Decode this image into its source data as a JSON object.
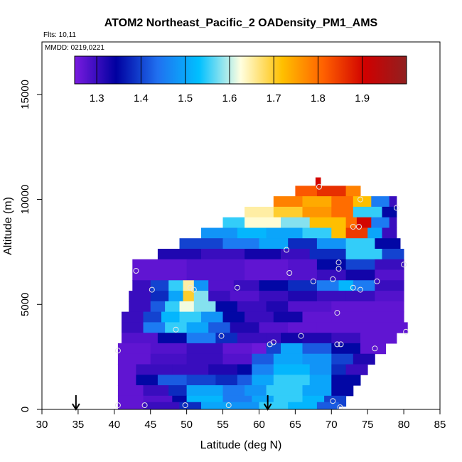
{
  "chart_data": {
    "type": "heatmap",
    "title": "ATOM2 Northeast_Pacific_2 OADensity_PM1_AMS",
    "flights_label": "Flts: 10,11",
    "mmdd_label": "MMDD: 0219,0221",
    "xlabel": "Latitude (deg N)",
    "ylabel": "Altitude (m)",
    "xlim": [
      30,
      85
    ],
    "ylim": [
      0,
      17500
    ],
    "x_ticks": [
      "30",
      "35",
      "40",
      "45",
      "50",
      "55",
      "60",
      "65",
      "70",
      "75",
      "80",
      "85"
    ],
    "y_ticks": [
      "0",
      "5000",
      "10000",
      "15000"
    ],
    "colorbar": {
      "range": [
        1.25,
        2.0
      ],
      "ticks": [
        "1.3",
        "1.4",
        "1.5",
        "1.6",
        "1.7",
        "1.8",
        "1.9"
      ],
      "colors": [
        "#7a1be0",
        "#0000a0",
        "#2070f0",
        "#00c0ff",
        "#ffffe0",
        "#ffc000",
        "#ff6000",
        "#d00000",
        "#902020"
      ]
    },
    "arrows_latitude": [
      34.7,
      61.2
    ],
    "rows": [
      {
        "alt": 10800,
        "segs": [
          [
            67.8,
            68.5,
            1.9
          ]
        ]
      },
      {
        "alt": 10400,
        "segs": [
          [
            65.0,
            68.0,
            1.82
          ],
          [
            68.0,
            72.0,
            1.86
          ],
          [
            72.0,
            74.0,
            1.78
          ]
        ]
      },
      {
        "alt": 9900,
        "segs": [
          [
            62.0,
            66.0,
            1.78
          ],
          [
            66.0,
            70.0,
            1.74
          ],
          [
            70.0,
            73.0,
            1.8
          ],
          [
            73.0,
            75.5,
            1.72
          ],
          [
            75.5,
            78.0,
            1.45
          ],
          [
            78.0,
            79.0,
            1.3
          ]
        ]
      },
      {
        "alt": 9400,
        "segs": [
          [
            58.0,
            62.0,
            1.65
          ],
          [
            62.0,
            66.0,
            1.7
          ],
          [
            66.0,
            70.0,
            1.76
          ],
          [
            70.0,
            73.0,
            1.8
          ],
          [
            73.0,
            77.0,
            1.55
          ],
          [
            77.0,
            79.0,
            1.35
          ]
        ]
      },
      {
        "alt": 8900,
        "segs": [
          [
            55.0,
            58.0,
            1.55
          ],
          [
            58.0,
            63.0,
            1.63
          ],
          [
            63.0,
            67.0,
            1.58
          ],
          [
            67.0,
            72.0,
            1.72
          ],
          [
            72.0,
            73.5,
            1.8
          ],
          [
            73.5,
            75.5,
            1.9
          ],
          [
            75.5,
            78.0,
            1.45
          ],
          [
            78.0,
            79.0,
            1.3
          ]
        ]
      },
      {
        "alt": 8400,
        "segs": [
          [
            52.0,
            57.0,
            1.48
          ],
          [
            57.0,
            61.0,
            1.52
          ],
          [
            61.0,
            66.0,
            1.5
          ],
          [
            66.0,
            70.0,
            1.55
          ],
          [
            70.0,
            72.0,
            1.72
          ],
          [
            72.0,
            75.0,
            1.85
          ],
          [
            75.0,
            77.0,
            1.5
          ],
          [
            77.0,
            79.0,
            1.3
          ]
        ]
      },
      {
        "alt": 7900,
        "segs": [
          [
            49.0,
            55.0,
            1.4
          ],
          [
            55.0,
            60.0,
            1.45
          ],
          [
            60.0,
            64.0,
            1.5
          ],
          [
            64.0,
            68.0,
            1.38
          ],
          [
            68.0,
            72.0,
            1.48
          ],
          [
            72.0,
            76.0,
            1.55
          ],
          [
            76.0,
            79.5,
            1.35
          ]
        ]
      },
      {
        "alt": 7400,
        "segs": [
          [
            46.0,
            52.0,
            1.32
          ],
          [
            52.0,
            58.0,
            1.3
          ],
          [
            58.0,
            63.0,
            1.33
          ],
          [
            63.0,
            67.0,
            1.3
          ],
          [
            67.0,
            72.0,
            1.38
          ],
          [
            72.0,
            77.0,
            1.55
          ],
          [
            77.0,
            80.0,
            1.4
          ]
        ]
      },
      {
        "alt": 6900,
        "segs": [
          [
            42.5,
            50.0,
            1.27
          ],
          [
            50.0,
            58.0,
            1.28
          ],
          [
            58.0,
            64.0,
            1.27
          ],
          [
            64.0,
            68.0,
            1.28
          ],
          [
            68.0,
            72.0,
            1.35
          ],
          [
            72.0,
            76.0,
            1.4
          ],
          [
            76.0,
            80.0,
            1.3
          ]
        ]
      },
      {
        "alt": 6400,
        "segs": [
          [
            42.5,
            50.0,
            1.27
          ],
          [
            50.0,
            58.0,
            1.28
          ],
          [
            58.0,
            64.0,
            1.27
          ],
          [
            64.0,
            68.0,
            1.28
          ],
          [
            68.0,
            72.0,
            1.3
          ],
          [
            72.0,
            76.0,
            1.33
          ],
          [
            76.0,
            80.0,
            1.28
          ]
        ]
      },
      {
        "alt": 5900,
        "segs": [
          [
            42.5,
            45.0,
            1.3
          ],
          [
            45.0,
            47.5,
            1.4
          ],
          [
            47.5,
            49.5,
            1.55
          ],
          [
            49.5,
            51.0,
            1.65
          ],
          [
            51.0,
            53.0,
            1.48
          ],
          [
            53.0,
            56.5,
            1.28
          ],
          [
            56.5,
            60.0,
            1.3
          ],
          [
            60.0,
            64.0,
            1.35
          ],
          [
            64.0,
            68.0,
            1.38
          ],
          [
            68.0,
            71.0,
            1.45
          ],
          [
            71.0,
            73.0,
            1.52
          ],
          [
            73.0,
            76.0,
            1.45
          ],
          [
            76.0,
            80.0,
            1.3
          ]
        ]
      },
      {
        "alt": 5400,
        "segs": [
          [
            42.0,
            45.0,
            1.3
          ],
          [
            45.0,
            47.5,
            1.38
          ],
          [
            47.5,
            49.5,
            1.5
          ],
          [
            49.5,
            51.0,
            1.7
          ],
          [
            51.0,
            53.0,
            1.58
          ],
          [
            53.0,
            56.0,
            1.3
          ],
          [
            56.0,
            60.0,
            1.28
          ],
          [
            60.0,
            64.0,
            1.3
          ],
          [
            64.0,
            68.0,
            1.32
          ],
          [
            68.0,
            72.0,
            1.3
          ],
          [
            72.0,
            76.0,
            1.3
          ],
          [
            76.0,
            80.0,
            1.28
          ]
        ]
      },
      {
        "alt": 4900,
        "segs": [
          [
            42.0,
            45.0,
            1.3
          ],
          [
            45.0,
            47.0,
            1.42
          ],
          [
            47.0,
            49.0,
            1.55
          ],
          [
            49.0,
            51.0,
            1.62
          ],
          [
            51.0,
            54.0,
            1.58
          ],
          [
            54.0,
            57.0,
            1.35
          ],
          [
            57.0,
            61.0,
            1.3
          ],
          [
            61.0,
            64.0,
            1.32
          ],
          [
            64.0,
            70.0,
            1.28
          ],
          [
            70.0,
            80.0,
            1.27
          ]
        ]
      },
      {
        "alt": 4400,
        "segs": [
          [
            41.0,
            44.0,
            1.3
          ],
          [
            44.0,
            46.5,
            1.4
          ],
          [
            46.5,
            49.0,
            1.52
          ],
          [
            49.0,
            52.0,
            1.55
          ],
          [
            52.0,
            55.0,
            1.48
          ],
          [
            55.0,
            58.0,
            1.35
          ],
          [
            58.0,
            62.0,
            1.3
          ],
          [
            62.0,
            66.0,
            1.33
          ],
          [
            66.0,
            70.0,
            1.27
          ],
          [
            70.0,
            80.0,
            1.27
          ]
        ]
      },
      {
        "alt": 3900,
        "segs": [
          [
            41.0,
            44.0,
            1.3
          ],
          [
            44.0,
            47.0,
            1.45
          ],
          [
            47.0,
            50.0,
            1.55
          ],
          [
            50.0,
            53.0,
            1.5
          ],
          [
            53.0,
            56.0,
            1.42
          ],
          [
            56.0,
            60.0,
            1.32
          ],
          [
            60.0,
            64.0,
            1.28
          ],
          [
            64.0,
            68.0,
            1.27
          ],
          [
            68.0,
            80.5,
            1.27
          ]
        ]
      },
      {
        "alt": 3400,
        "segs": [
          [
            41.0,
            46.0,
            1.28
          ],
          [
            46.0,
            50.0,
            1.35
          ],
          [
            50.0,
            54.0,
            1.45
          ],
          [
            54.0,
            57.0,
            1.38
          ],
          [
            57.0,
            61.0,
            1.3
          ],
          [
            61.0,
            63.0,
            1.3
          ],
          [
            63.0,
            66.0,
            1.33
          ],
          [
            66.0,
            70.0,
            1.32
          ],
          [
            70.0,
            74.0,
            1.3
          ],
          [
            74.0,
            79.0,
            1.27
          ]
        ]
      },
      {
        "alt": 2900,
        "segs": [
          [
            40.5,
            45.0,
            1.27
          ],
          [
            45.0,
            50.0,
            1.28
          ],
          [
            50.0,
            55.0,
            1.3
          ],
          [
            55.0,
            59.0,
            1.27
          ],
          [
            59.0,
            61.0,
            1.26
          ],
          [
            61.0,
            63.0,
            1.4
          ],
          [
            63.0,
            66.0,
            1.5
          ],
          [
            66.0,
            70.0,
            1.42
          ],
          [
            70.0,
            74.0,
            1.35
          ],
          [
            74.0,
            77.5,
            1.27
          ]
        ]
      },
      {
        "alt": 2400,
        "segs": [
          [
            40.5,
            45.0,
            1.27
          ],
          [
            45.0,
            50.0,
            1.29
          ],
          [
            50.0,
            55.0,
            1.3
          ],
          [
            55.0,
            59.0,
            1.28
          ],
          [
            59.0,
            62.0,
            1.42
          ],
          [
            62.0,
            66.0,
            1.5
          ],
          [
            66.0,
            70.0,
            1.48
          ],
          [
            70.0,
            73.0,
            1.4
          ],
          [
            73.0,
            76.0,
            1.32
          ]
        ]
      },
      {
        "alt": 1900,
        "segs": [
          [
            40.5,
            43.0,
            1.27
          ],
          [
            43.0,
            48.0,
            1.3
          ],
          [
            48.0,
            53.0,
            1.3
          ],
          [
            53.0,
            57.0,
            1.32
          ],
          [
            57.0,
            59.0,
            1.35
          ],
          [
            59.0,
            62.0,
            1.46
          ],
          [
            62.0,
            67.0,
            1.52
          ],
          [
            67.0,
            70.0,
            1.48
          ],
          [
            70.0,
            72.0,
            1.38
          ],
          [
            72.0,
            75.0,
            1.3
          ]
        ]
      },
      {
        "alt": 1400,
        "segs": [
          [
            40.5,
            43.0,
            1.27
          ],
          [
            43.0,
            46.0,
            1.35
          ],
          [
            46.0,
            50.0,
            1.42
          ],
          [
            50.0,
            54.0,
            1.4
          ],
          [
            54.0,
            57.0,
            1.38
          ],
          [
            57.0,
            59.0,
            1.42
          ],
          [
            59.0,
            62.0,
            1.5
          ],
          [
            62.0,
            67.0,
            1.55
          ],
          [
            67.0,
            70.0,
            1.5
          ],
          [
            70.0,
            74.0,
            1.35
          ]
        ]
      },
      {
        "alt": 900,
        "segs": [
          [
            40.5,
            44.0,
            1.27
          ],
          [
            44.0,
            47.5,
            1.3
          ],
          [
            47.5,
            50.0,
            1.38
          ],
          [
            50.0,
            55.0,
            1.5
          ],
          [
            55.0,
            58.0,
            1.45
          ],
          [
            58.0,
            61.0,
            1.48
          ],
          [
            61.0,
            66.0,
            1.55
          ],
          [
            66.0,
            70.0,
            1.5
          ],
          [
            70.0,
            73.0,
            1.35
          ]
        ]
      },
      {
        "alt": 400,
        "segs": [
          [
            40.5,
            44.0,
            1.27
          ],
          [
            44.0,
            48.0,
            1.28
          ],
          [
            48.0,
            50.0,
            1.35
          ],
          [
            50.0,
            55.0,
            1.52
          ],
          [
            55.0,
            59.0,
            1.45
          ],
          [
            59.0,
            62.0,
            1.5
          ],
          [
            62.0,
            66.0,
            1.55
          ],
          [
            66.0,
            69.0,
            1.52
          ],
          [
            69.0,
            72.0,
            1.4
          ]
        ]
      },
      {
        "alt": 100,
        "segs": [
          [
            40.5,
            44.0,
            1.27
          ],
          [
            44.0,
            49.0,
            1.3
          ],
          [
            49.0,
            52.0,
            1.38
          ],
          [
            52.0,
            56.0,
            1.5
          ],
          [
            56.0,
            60.0,
            1.48
          ],
          [
            60.0,
            64.0,
            1.55
          ],
          [
            64.0,
            68.0,
            1.52
          ],
          [
            68.0,
            71.0,
            1.42
          ]
        ]
      }
    ],
    "points": [
      [
        40.5,
        200
      ],
      [
        44.2,
        200
      ],
      [
        49.8,
        200
      ],
      [
        55.8,
        200
      ],
      [
        70.2,
        400
      ],
      [
        71.2,
        100
      ],
      [
        40.5,
        2800
      ],
      [
        48.5,
        3800
      ],
      [
        54.8,
        3500
      ],
      [
        61.5,
        3100
      ],
      [
        62.0,
        3200
      ],
      [
        65.8,
        3500
      ],
      [
        70.8,
        3100
      ],
      [
        71.3,
        3100
      ],
      [
        76.0,
        2900
      ],
      [
        80.3,
        3700
      ],
      [
        70.8,
        4600
      ],
      [
        43.0,
        6600
      ],
      [
        45.2,
        5700
      ],
      [
        50.5,
        5800
      ],
      [
        51.0,
        5700
      ],
      [
        57.0,
        5800
      ],
      [
        64.2,
        6500
      ],
      [
        67.5,
        6100
      ],
      [
        70.2,
        6200
      ],
      [
        71.0,
        6700
      ],
      [
        73.0,
        5800
      ],
      [
        74.0,
        5700
      ],
      [
        76.3,
        6100
      ],
      [
        80.0,
        6900
      ],
      [
        63.8,
        7600
      ],
      [
        71.0,
        7000
      ],
      [
        73.0,
        8700
      ],
      [
        73.8,
        8700
      ],
      [
        74.0,
        10000
      ],
      [
        79.0,
        9600
      ],
      [
        68.3,
        10600
      ]
    ]
  }
}
